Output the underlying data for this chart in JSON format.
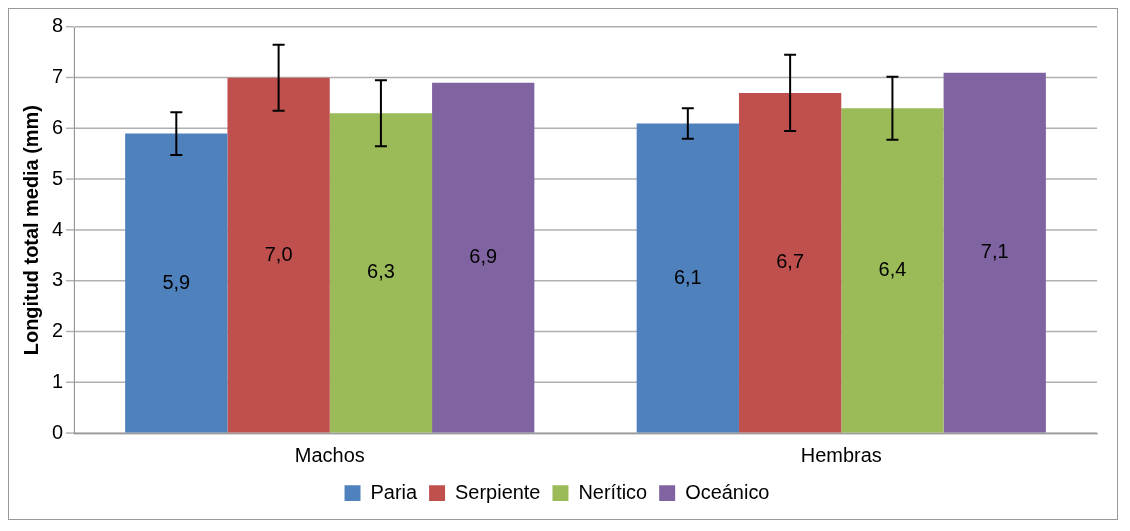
{
  "chart_data": {
    "type": "bar",
    "ylabel": "Longitud total media (mm)",
    "categories": [
      "Machos",
      "Hembras"
    ],
    "series": [
      {
        "name": "Paria",
        "color": "#4f81bd",
        "values": [
          5.9,
          6.1
        ],
        "errors": [
          0.42,
          0.3
        ],
        "value_labels": [
          "5,9",
          "6,1"
        ]
      },
      {
        "name": "Serpiente",
        "color": "#c0504d",
        "values": [
          7.0,
          6.7
        ],
        "errors": [
          0.65,
          0.75
        ],
        "value_labels": [
          "7,0",
          "6,7"
        ]
      },
      {
        "name": "Nerítico",
        "color": "#9bbb59",
        "values": [
          6.3,
          6.4
        ],
        "errors": [
          0.65,
          0.62
        ],
        "value_labels": [
          "6,3",
          "6,4"
        ]
      },
      {
        "name": "Oceánico",
        "color": "#8064a2",
        "values": [
          6.9,
          7.1
        ],
        "value_labels": [
          "6,9",
          "7,1"
        ]
      }
    ],
    "ylim": [
      0,
      8
    ],
    "yticks": [
      0,
      1,
      2,
      3,
      4,
      5,
      6,
      7,
      8
    ],
    "grid": "y",
    "legend": "bottom"
  }
}
